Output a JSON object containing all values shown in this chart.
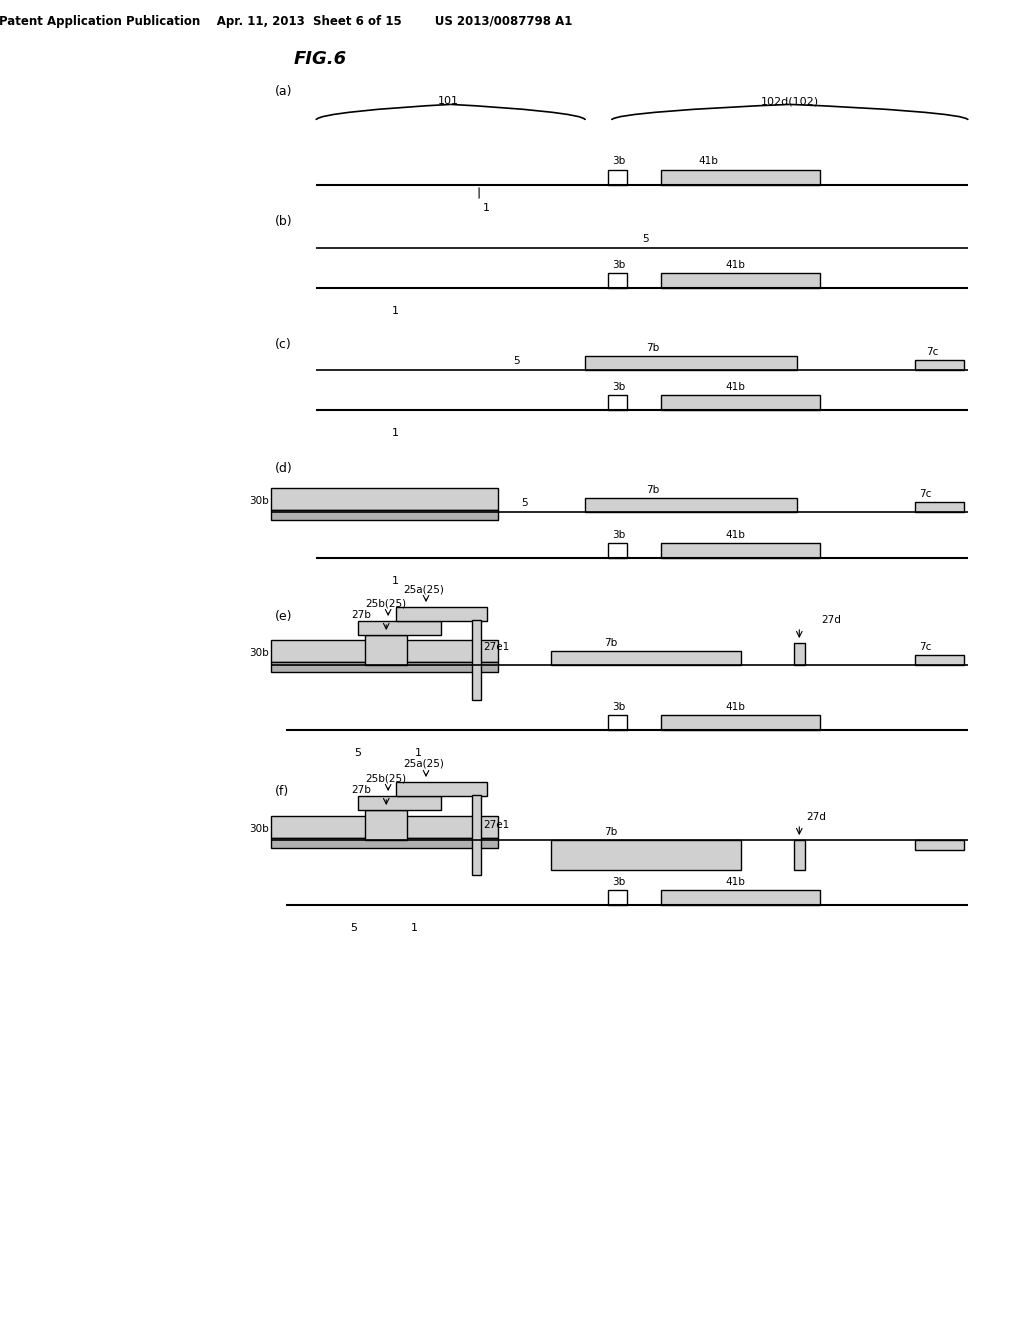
{
  "bg_color": "#ffffff",
  "header_text": "Patent Application Publication    Apr. 11, 2013  Sheet 6 of 15        US 2013/0087798 A1",
  "fig_label": "FIG.6",
  "panels": [
    "(a)",
    "(b)",
    "(c)",
    "(d)",
    "(e)",
    "(f)"
  ]
}
